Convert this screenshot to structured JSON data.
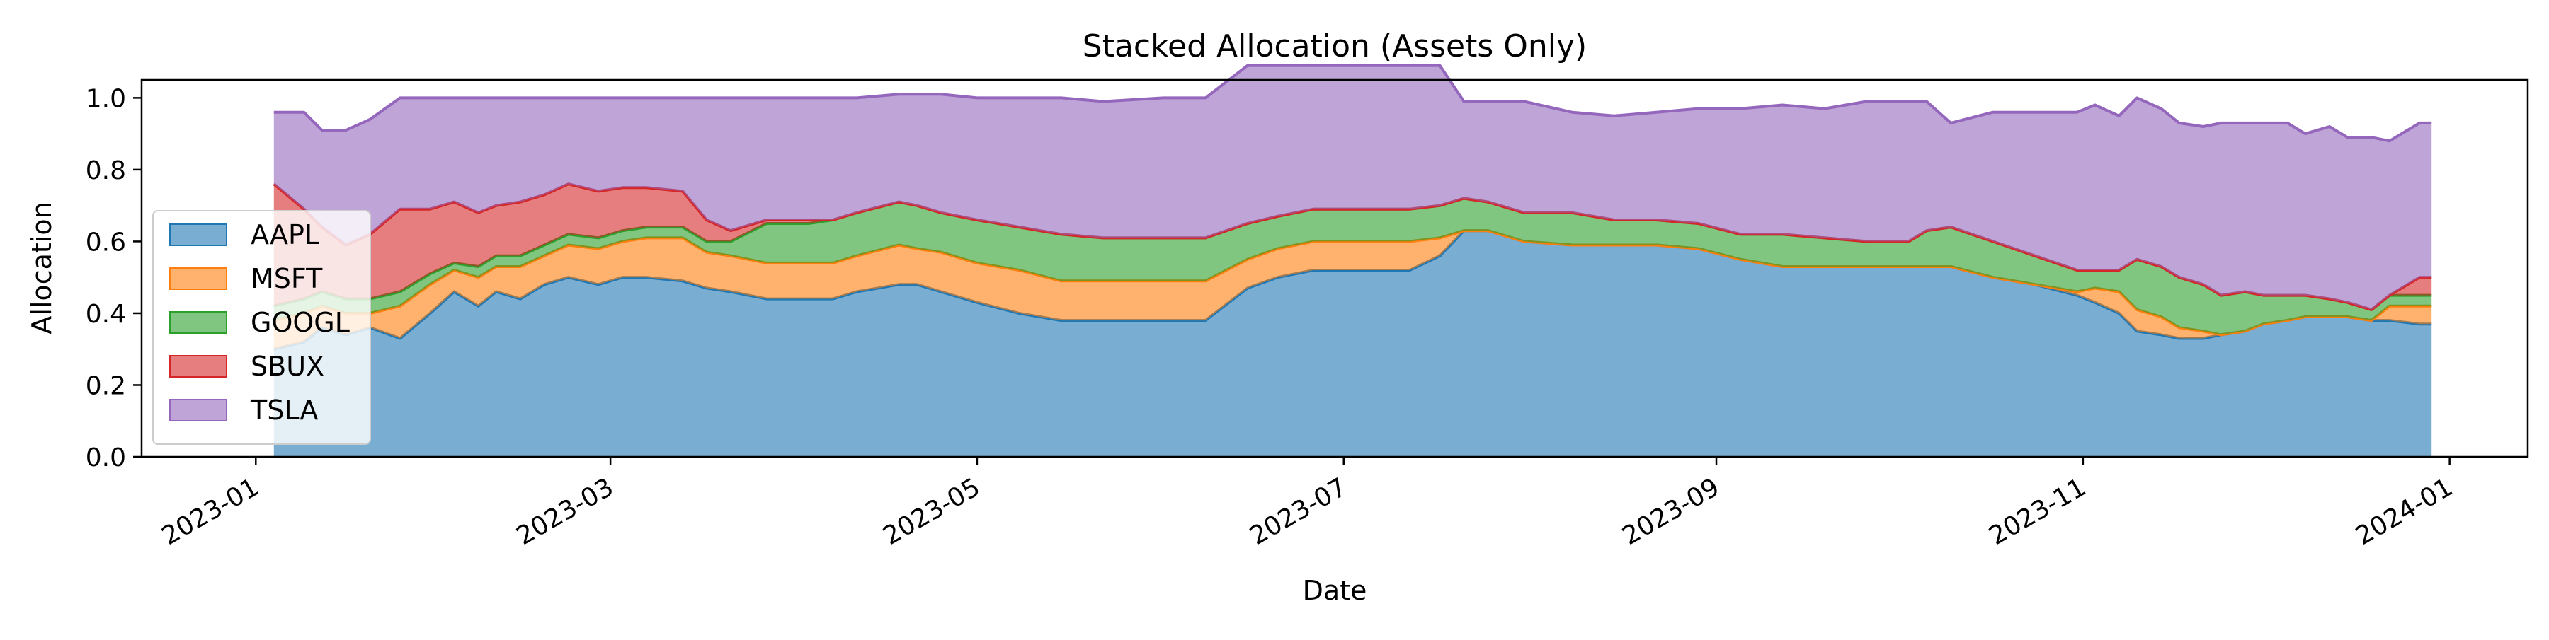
{
  "chart_data": {
    "type": "area",
    "stacked": true,
    "title": "Stacked Allocation (Assets Only)",
    "xlabel": "Date",
    "ylabel": "Allocation",
    "ylim": [
      0,
      1.05
    ],
    "xlim": [
      "2022-12-13",
      "2024-01-14"
    ],
    "grid": false,
    "legend_position": "lower-left",
    "x_ticks": [
      "2023-01",
      "2023-03",
      "2023-05",
      "2023-07",
      "2023-09",
      "2023-11",
      "2024-01"
    ],
    "y_ticks": [
      "0.0",
      "0.2",
      "0.4",
      "0.6",
      "0.8",
      "1.0"
    ],
    "x": [
      "2023-01-04",
      "2023-01-09",
      "2023-01-12",
      "2023-01-16",
      "2023-01-20",
      "2023-01-25",
      "2023-01-30",
      "2023-02-03",
      "2023-02-07",
      "2023-02-10",
      "2023-02-14",
      "2023-02-18",
      "2023-02-22",
      "2023-02-27",
      "2023-03-03",
      "2023-03-07",
      "2023-03-13",
      "2023-03-17",
      "2023-03-21",
      "2023-03-27",
      "2023-04-03",
      "2023-04-07",
      "2023-04-11",
      "2023-04-18",
      "2023-04-21",
      "2023-04-25",
      "2023-05-01",
      "2023-05-08",
      "2023-05-15",
      "2023-05-22",
      "2023-06-01",
      "2023-06-08",
      "2023-06-15",
      "2023-06-20",
      "2023-06-26",
      "2023-07-03",
      "2023-07-12",
      "2023-07-17",
      "2023-07-21",
      "2023-07-25",
      "2023-07-31",
      "2023-08-08",
      "2023-08-15",
      "2023-08-22",
      "2023-08-29",
      "2023-09-05",
      "2023-09-12",
      "2023-09-19",
      "2023-09-26",
      "2023-10-03",
      "2023-10-06",
      "2023-10-10",
      "2023-10-17",
      "2023-10-24",
      "2023-10-31",
      "2023-11-03",
      "2023-11-07",
      "2023-11-10",
      "2023-11-14",
      "2023-11-17",
      "2023-11-21",
      "2023-11-24",
      "2023-11-28",
      "2023-12-01",
      "2023-12-05",
      "2023-12-08",
      "2023-12-12",
      "2023-12-15",
      "2023-12-19",
      "2023-12-22",
      "2023-12-27",
      "2023-12-29"
    ],
    "series": [
      {
        "name": "AAPL",
        "color": "#1f77b4",
        "values": [
          0.3,
          0.32,
          0.36,
          0.34,
          0.36,
          0.33,
          0.4,
          0.46,
          0.42,
          0.46,
          0.44,
          0.48,
          0.5,
          0.48,
          0.5,
          0.5,
          0.49,
          0.47,
          0.46,
          0.44,
          0.44,
          0.44,
          0.46,
          0.48,
          0.48,
          0.46,
          0.43,
          0.4,
          0.38,
          0.38,
          0.38,
          0.38,
          0.47,
          0.5,
          0.52,
          0.52,
          0.52,
          0.56,
          0.63,
          0.63,
          0.6,
          0.59,
          0.59,
          0.59,
          0.58,
          0.55,
          0.53,
          0.53,
          0.53,
          0.53,
          0.53,
          0.53,
          0.5,
          0.48,
          0.45,
          0.43,
          0.4,
          0.35,
          0.34,
          0.33,
          0.33,
          0.34,
          0.35,
          0.37,
          0.38,
          0.39,
          0.39,
          0.39,
          0.38,
          0.38,
          0.37,
          0.37
        ]
      },
      {
        "name": "MSFT",
        "color": "#ff7f0e",
        "values": [
          0.08,
          0.08,
          0.06,
          0.06,
          0.04,
          0.09,
          0.08,
          0.06,
          0.08,
          0.07,
          0.09,
          0.08,
          0.09,
          0.1,
          0.1,
          0.11,
          0.12,
          0.1,
          0.1,
          0.1,
          0.1,
          0.1,
          0.1,
          0.11,
          0.1,
          0.11,
          0.11,
          0.12,
          0.11,
          0.11,
          0.11,
          0.11,
          0.08,
          0.08,
          0.08,
          0.08,
          0.08,
          0.05,
          0.0,
          0.0,
          0.0,
          0.0,
          0.0,
          0.0,
          0.0,
          0.0,
          0.0,
          0.0,
          0.0,
          0.0,
          0.0,
          0.0,
          0.0,
          0.0,
          0.01,
          0.04,
          0.06,
          0.06,
          0.05,
          0.03,
          0.02,
          0.0,
          0.0,
          0.0,
          0.0,
          0.0,
          0.0,
          0.0,
          0.0,
          0.04,
          0.05,
          0.05
        ]
      },
      {
        "name": "GOOGL",
        "color": "#2ca02c",
        "values": [
          0.04,
          0.04,
          0.04,
          0.04,
          0.04,
          0.04,
          0.03,
          0.02,
          0.03,
          0.03,
          0.03,
          0.03,
          0.03,
          0.03,
          0.03,
          0.03,
          0.03,
          0.03,
          0.04,
          0.11,
          0.11,
          0.12,
          0.12,
          0.12,
          0.12,
          0.11,
          0.12,
          0.12,
          0.13,
          0.12,
          0.12,
          0.12,
          0.1,
          0.09,
          0.09,
          0.09,
          0.09,
          0.09,
          0.09,
          0.08,
          0.08,
          0.09,
          0.07,
          0.07,
          0.07,
          0.07,
          0.09,
          0.08,
          0.07,
          0.07,
          0.1,
          0.11,
          0.1,
          0.08,
          0.06,
          0.05,
          0.06,
          0.14,
          0.14,
          0.14,
          0.13,
          0.11,
          0.11,
          0.08,
          0.07,
          0.06,
          0.05,
          0.04,
          0.03,
          0.03,
          0.03,
          0.03
        ]
      },
      {
        "name": "SBUX",
        "color": "#d62728",
        "values": [
          0.34,
          0.25,
          0.18,
          0.15,
          0.18,
          0.23,
          0.18,
          0.17,
          0.15,
          0.14,
          0.15,
          0.14,
          0.14,
          0.13,
          0.12,
          0.11,
          0.1,
          0.06,
          0.03,
          0.01,
          0.01,
          0.0,
          0.0,
          0.0,
          0.0,
          0.0,
          0.0,
          0.0,
          0.0,
          0.0,
          0.0,
          0.0,
          0.0,
          0.0,
          0.0,
          0.0,
          0.0,
          0.0,
          0.0,
          0.0,
          0.0,
          0.0,
          0.0,
          0.0,
          0.0,
          0.0,
          0.0,
          0.0,
          0.0,
          0.0,
          0.0,
          0.0,
          0.0,
          0.0,
          0.0,
          0.0,
          0.0,
          0.0,
          0.0,
          0.0,
          0.0,
          0.0,
          0.0,
          0.0,
          0.0,
          0.0,
          0.0,
          0.0,
          0.0,
          0.0,
          0.05,
          0.05
        ]
      },
      {
        "name": "TSLA",
        "color": "#9467bd",
        "values": [
          0.2,
          0.27,
          0.27,
          0.32,
          0.32,
          0.31,
          0.31,
          0.29,
          0.32,
          0.3,
          0.29,
          0.27,
          0.24,
          0.26,
          0.25,
          0.25,
          0.26,
          0.34,
          0.37,
          0.34,
          0.34,
          0.34,
          0.32,
          0.3,
          0.31,
          0.33,
          0.34,
          0.36,
          0.38,
          0.38,
          0.39,
          0.39,
          0.44,
          0.42,
          0.4,
          0.4,
          0.4,
          0.39,
          0.27,
          0.28,
          0.31,
          0.28,
          0.29,
          0.3,
          0.32,
          0.35,
          0.36,
          0.36,
          0.39,
          0.39,
          0.36,
          0.29,
          0.36,
          0.4,
          0.44,
          0.46,
          0.43,
          0.45,
          0.44,
          0.43,
          0.44,
          0.48,
          0.47,
          0.48,
          0.48,
          0.45,
          0.48,
          0.46,
          0.48,
          0.43,
          0.43,
          0.43
        ]
      }
    ]
  }
}
